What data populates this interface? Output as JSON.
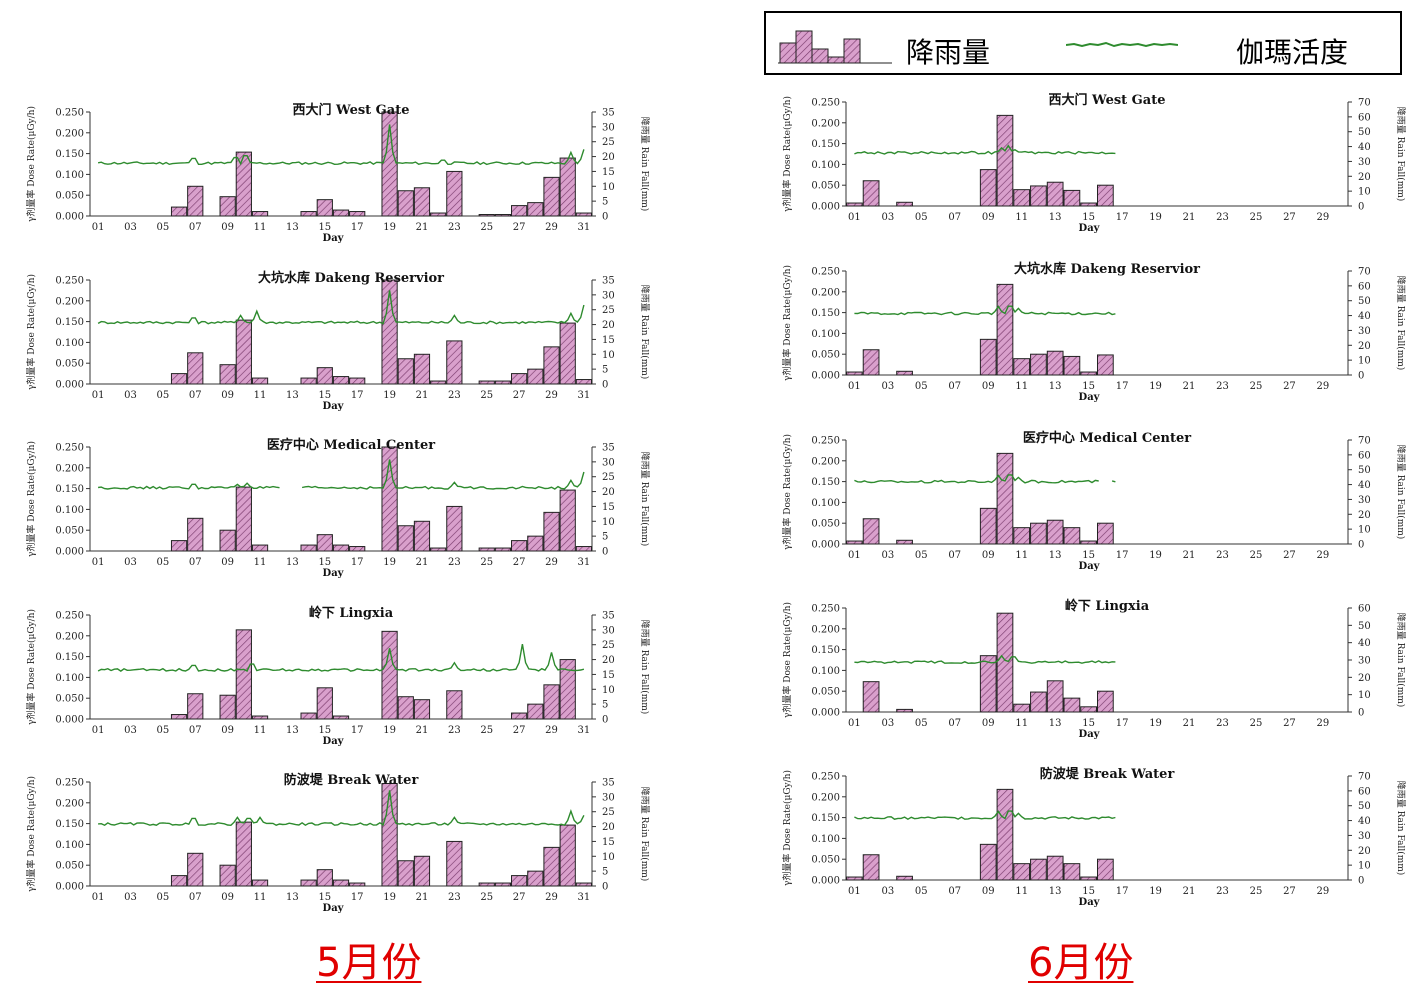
{
  "legend": {
    "rain_label": "降雨量",
    "gamma_label": "伽瑪活度"
  },
  "colors": {
    "bar_fill": "#d9a0cc",
    "bar_hatch": "#7a3a6c",
    "bar_stroke": "#222222",
    "line": "#2e8b2e",
    "month_label": "#e00000"
  },
  "months": [
    {
      "label": "5月份"
    },
    {
      "label": "6月份"
    }
  ],
  "chart_data": [
    {
      "type": "bar+line",
      "month": "5月份",
      "title": "西大门 West Gate",
      "xlabel": "Day",
      "ylabel": "γ剂量率 Dose Rate(μGy/h)",
      "y2label": "降雨量 Rain Fall(mm)",
      "ylim": [
        0,
        0.25
      ],
      "y2lim": [
        0,
        35
      ],
      "yticks": [
        "0.000",
        "0.050",
        "0.100",
        "0.150",
        "0.200",
        "0.250"
      ],
      "y2ticks": [
        "0",
        "5",
        "10",
        "15",
        "20",
        "25",
        "30",
        "35"
      ],
      "xticks": [
        "01",
        "03",
        "05",
        "07",
        "09",
        "11",
        "13",
        "15",
        "17",
        "19",
        "21",
        "23",
        "25",
        "27",
        "29",
        "31"
      ],
      "x_range": [
        1,
        31
      ],
      "rain": {
        "days": [
          6,
          7,
          9,
          10,
          11,
          14,
          15,
          16,
          17,
          19,
          20,
          21,
          22,
          23,
          25,
          26,
          27,
          28,
          29,
          30,
          31
        ],
        "values": [
          3,
          10,
          6.5,
          21.5,
          1.5,
          1.5,
          5.5,
          2,
          1.5,
          35,
          8.5,
          9.5,
          1,
          15,
          0.5,
          0.5,
          3.5,
          4.5,
          13,
          19.5,
          1
        ]
      },
      "gamma": {
        "base": 0.127,
        "start": 1,
        "end": 31,
        "spikes": [
          [
            6.9,
            0.145
          ],
          [
            9.5,
            0.148
          ],
          [
            10.1,
            0.155
          ],
          [
            19,
            0.22
          ],
          [
            22.3,
            0.138
          ],
          [
            30.2,
            0.153
          ],
          [
            31,
            0.16
          ]
        ]
      }
    },
    {
      "type": "bar+line",
      "month": "5月份",
      "title": "大坑水库 Dakeng Reservior",
      "xlabel": "Day",
      "ylabel": "γ剂量率 Dose Rate(μGy/h)",
      "y2label": "降雨量 Rain Fall(mm)",
      "ylim": [
        0,
        0.25
      ],
      "y2lim": [
        0,
        35
      ],
      "yticks": [
        "0.000",
        "0.050",
        "0.100",
        "0.150",
        "0.200",
        "0.250"
      ],
      "y2ticks": [
        "0",
        "5",
        "10",
        "15",
        "20",
        "25",
        "30",
        "35"
      ],
      "xticks": [
        "01",
        "03",
        "05",
        "07",
        "09",
        "11",
        "13",
        "15",
        "17",
        "19",
        "21",
        "23",
        "25",
        "27",
        "29",
        "31"
      ],
      "x_range": [
        1,
        31
      ],
      "rain": {
        "days": [
          6,
          7,
          9,
          10,
          11,
          14,
          15,
          16,
          17,
          19,
          20,
          21,
          22,
          23,
          25,
          26,
          27,
          28,
          29,
          30,
          31
        ],
        "values": [
          3.5,
          10.5,
          6.5,
          21.5,
          2,
          2,
          5.5,
          2.5,
          2,
          35,
          8.5,
          10,
          1,
          14.5,
          1,
          1,
          3.5,
          5,
          12.5,
          20.5,
          1.5
        ]
      },
      "gamma": {
        "base": 0.148,
        "start": 1,
        "end": 31,
        "spikes": [
          [
            6.9,
            0.165
          ],
          [
            9.8,
            0.165
          ],
          [
            10.8,
            0.175
          ],
          [
            19,
            0.225
          ],
          [
            23,
            0.165
          ],
          [
            30.2,
            0.17
          ],
          [
            31,
            0.19
          ]
        ]
      }
    },
    {
      "type": "bar+line",
      "month": "5月份",
      "title": "医疗中心 Medical Center",
      "xlabel": "Day",
      "ylabel": "γ剂量率 Dose Rate(μGy/h)",
      "y2label": "降雨量 Rain Fall(mm)",
      "ylim": [
        0,
        0.25
      ],
      "y2lim": [
        0,
        35
      ],
      "yticks": [
        "0.000",
        "0.050",
        "0.100",
        "0.150",
        "0.200",
        "0.250"
      ],
      "y2ticks": [
        "0",
        "5",
        "10",
        "15",
        "20",
        "25",
        "30",
        "35"
      ],
      "xticks": [
        "01",
        "03",
        "05",
        "07",
        "09",
        "11",
        "13",
        "15",
        "17",
        "19",
        "21",
        "23",
        "25",
        "27",
        "29",
        "31"
      ],
      "x_range": [
        1,
        31
      ],
      "rain": {
        "days": [
          6,
          7,
          9,
          10,
          11,
          14,
          15,
          16,
          17,
          19,
          20,
          21,
          22,
          23,
          25,
          26,
          27,
          28,
          29,
          30,
          31
        ],
        "values": [
          3.5,
          11,
          7,
          21.5,
          2,
          2,
          5.5,
          2,
          1.5,
          35,
          8.5,
          10,
          1,
          15,
          1,
          1,
          3.5,
          5,
          13,
          20.5,
          1.5
        ]
      },
      "gamma": {
        "base": 0.152,
        "start": 1,
        "end": 31,
        "gap": [
          12.2,
          13.6
        ],
        "spikes": [
          [
            6.9,
            0.165
          ],
          [
            9.6,
            0.16
          ],
          [
            10.2,
            0.163
          ],
          [
            19,
            0.22
          ],
          [
            23,
            0.165
          ],
          [
            30.2,
            0.17
          ],
          [
            31,
            0.19
          ]
        ]
      }
    },
    {
      "type": "bar+line",
      "month": "5月份",
      "title": "岭下 Lingxia",
      "xlabel": "Day",
      "ylabel": "γ剂量率 Dose Rate(μGy/h)",
      "y2label": "降雨量 Rain Fall(mm)",
      "ylim": [
        0,
        0.25
      ],
      "y2lim": [
        0,
        35
      ],
      "yticks": [
        "0.000",
        "0.050",
        "0.100",
        "0.150",
        "0.200",
        "0.250"
      ],
      "y2ticks": [
        "0",
        "5",
        "10",
        "15",
        "20",
        "25",
        "30",
        "35"
      ],
      "xticks": [
        "01",
        "03",
        "05",
        "07",
        "09",
        "11",
        "13",
        "15",
        "17",
        "19",
        "21",
        "23",
        "25",
        "27",
        "29",
        "31"
      ],
      "x_range": [
        1,
        31
      ],
      "rain": {
        "days": [
          6,
          7,
          9,
          10,
          11,
          14,
          15,
          16,
          19,
          20,
          21,
          23,
          27,
          28,
          29,
          30
        ],
        "values": [
          1.5,
          8.5,
          8,
          30,
          1,
          2,
          10.5,
          1,
          29.5,
          7.5,
          6.5,
          9.5,
          2,
          5,
          11.5,
          20
        ]
      },
      "gamma": {
        "base": 0.118,
        "start": 1,
        "end": 31,
        "spikes": [
          [
            6.9,
            0.135
          ],
          [
            10.5,
            0.14
          ],
          [
            19,
            0.17
          ],
          [
            23,
            0.135
          ],
          [
            27.2,
            0.18
          ],
          [
            29,
            0.16
          ]
        ]
      }
    },
    {
      "type": "bar+line",
      "month": "5月份",
      "title": "防波堤 Break Water",
      "xlabel": "Day",
      "ylabel": "γ剂量率 Dose Rate(μGy/h)",
      "y2label": "降雨量 Rain Fall(mm)",
      "ylim": [
        0,
        0.25
      ],
      "y2lim": [
        0,
        35
      ],
      "yticks": [
        "0.000",
        "0.050",
        "0.100",
        "0.150",
        "0.200",
        "0.250"
      ],
      "y2ticks": [
        "0",
        "5",
        "10",
        "15",
        "20",
        "25",
        "30",
        "35"
      ],
      "xticks": [
        "01",
        "03",
        "05",
        "07",
        "09",
        "11",
        "13",
        "15",
        "17",
        "19",
        "21",
        "23",
        "25",
        "27",
        "29",
        "31"
      ],
      "x_range": [
        1,
        31
      ],
      "rain": {
        "days": [
          6,
          7,
          9,
          10,
          11,
          14,
          15,
          16,
          17,
          19,
          20,
          21,
          23,
          25,
          26,
          27,
          28,
          29,
          30,
          31
        ],
        "values": [
          3.5,
          11,
          7,
          21.5,
          2,
          2,
          5.5,
          2,
          1,
          34.5,
          8.5,
          10,
          15,
          1,
          1,
          3.5,
          5,
          13,
          20.5,
          1
        ]
      },
      "gamma": {
        "base": 0.149,
        "start": 1,
        "end": 31,
        "spikes": [
          [
            6.9,
            0.17
          ],
          [
            9.6,
            0.165
          ],
          [
            10.3,
            0.17
          ],
          [
            11,
            0.165
          ],
          [
            19,
            0.23
          ],
          [
            23,
            0.165
          ],
          [
            30.2,
            0.18
          ],
          [
            31,
            0.17
          ]
        ]
      }
    },
    {
      "type": "bar+line",
      "month": "6月份",
      "title": "西大门 West Gate",
      "xlabel": "Day",
      "ylabel": "γ剂量率 Dose Rate(μGy/h)",
      "y2label": "降雨量 Rain Fall(mm)",
      "ylim": [
        0,
        0.25
      ],
      "y2lim": [
        0,
        70
      ],
      "yticks": [
        "0.000",
        "0.050",
        "0.100",
        "0.150",
        "0.200",
        "0.250"
      ],
      "y2ticks": [
        "0",
        "10",
        "20",
        "30",
        "40",
        "50",
        "60",
        "70"
      ],
      "xticks": [
        "01",
        "03",
        "05",
        "07",
        "09",
        "11",
        "13",
        "15",
        "17",
        "19",
        "21",
        "23",
        "25",
        "27",
        "29"
      ],
      "x_range": [
        1,
        30
      ],
      "rain": {
        "days": [
          1,
          2,
          4,
          9,
          10,
          11,
          12,
          13,
          14,
          15,
          16
        ],
        "values": [
          2,
          17,
          2.5,
          24.5,
          61,
          11,
          13.5,
          16,
          10.5,
          2,
          14
        ]
      },
      "gamma": {
        "base": 0.128,
        "start": 1,
        "end": 16.6,
        "spikes": [
          [
            9.8,
            0.14
          ],
          [
            10.2,
            0.145
          ],
          [
            10.6,
            0.135
          ]
        ]
      }
    },
    {
      "type": "bar+line",
      "month": "6月份",
      "title": "大坑水库 Dakeng Reservior",
      "xlabel": "Day",
      "ylabel": "γ剂量率 Dose Rate(μGy/h)",
      "y2label": "降雨量 Rain Fall(mm)",
      "ylim": [
        0,
        0.25
      ],
      "y2lim": [
        0,
        70
      ],
      "yticks": [
        "0.000",
        "0.050",
        "0.100",
        "0.150",
        "0.200",
        "0.250"
      ],
      "y2ticks": [
        "0",
        "10",
        "20",
        "30",
        "40",
        "50",
        "60",
        "70"
      ],
      "xticks": [
        "01",
        "03",
        "05",
        "07",
        "09",
        "11",
        "13",
        "15",
        "17",
        "19",
        "21",
        "23",
        "25",
        "27",
        "29"
      ],
      "x_range": [
        1,
        30
      ],
      "rain": {
        "days": [
          1,
          2,
          4,
          9,
          10,
          11,
          12,
          13,
          14,
          15,
          16
        ],
        "values": [
          2,
          17,
          2.5,
          24,
          61,
          11,
          14,
          16,
          12.5,
          2,
          13.5
        ]
      },
      "gamma": {
        "base": 0.148,
        "start": 1,
        "end": 16.6,
        "spikes": [
          [
            9.6,
            0.165
          ],
          [
            10.3,
            0.175
          ],
          [
            10.8,
            0.16
          ]
        ]
      }
    },
    {
      "type": "bar+line",
      "month": "6月份",
      "title": "医疗中心 Medical Center",
      "xlabel": "Day",
      "ylabel": "γ剂量率 Dose Rate(μGy/h)",
      "y2label": "降雨量 Rain Fall(mm)",
      "ylim": [
        0,
        0.25
      ],
      "y2lim": [
        0,
        70
      ],
      "yticks": [
        "0.000",
        "0.050",
        "0.100",
        "0.150",
        "0.200",
        "0.250"
      ],
      "y2ticks": [
        "0",
        "10",
        "20",
        "30",
        "40",
        "50",
        "60",
        "70"
      ],
      "xticks": [
        "01",
        "03",
        "05",
        "07",
        "09",
        "11",
        "13",
        "15",
        "17",
        "19",
        "21",
        "23",
        "25",
        "27",
        "29"
      ],
      "x_range": [
        1,
        30
      ],
      "rain": {
        "days": [
          1,
          2,
          4,
          9,
          10,
          11,
          12,
          13,
          14,
          15,
          16
        ],
        "values": [
          2,
          17,
          2.5,
          24,
          61,
          11,
          14,
          16,
          11,
          2,
          14
        ]
      },
      "gamma": {
        "base": 0.15,
        "start": 1,
        "end": 16.6,
        "gap": [
          15.6,
          16.3
        ],
        "spikes": [
          [
            9.6,
            0.165
          ],
          [
            10.3,
            0.175
          ],
          [
            10.8,
            0.16
          ]
        ]
      }
    },
    {
      "type": "bar+line",
      "month": "6月份",
      "title": "岭下 Lingxia",
      "xlabel": "Day",
      "ylabel": "γ剂量率 Dose Rate(μGy/h)",
      "y2label": "降雨量 Rain Fall(mm)",
      "ylim": [
        0,
        0.25
      ],
      "y2lim": [
        0,
        60
      ],
      "yticks": [
        "0.000",
        "0.050",
        "0.100",
        "0.150",
        "0.200",
        "0.250"
      ],
      "y2ticks": [
        "0",
        "10",
        "20",
        "30",
        "40",
        "50",
        "60"
      ],
      "xticks": [
        "01",
        "03",
        "05",
        "07",
        "09",
        "11",
        "13",
        "15",
        "17",
        "19",
        "21",
        "23",
        "25",
        "27",
        "29"
      ],
      "x_range": [
        1,
        30
      ],
      "rain": {
        "days": [
          2,
          4,
          9,
          10,
          11,
          12,
          13,
          14,
          15,
          16
        ],
        "values": [
          17.5,
          1.5,
          32.5,
          57,
          4.5,
          11.5,
          18,
          8,
          3,
          12
        ]
      },
      "gamma": {
        "base": 0.12,
        "start": 1,
        "end": 16.6,
        "spikes": [
          [
            9.8,
            0.135
          ],
          [
            10.5,
            0.14
          ]
        ]
      }
    },
    {
      "type": "bar+line",
      "month": "6月份",
      "title": "防波堤 Break Water",
      "xlabel": "Day",
      "ylabel": "γ剂量率 Dose Rate(μGy/h)",
      "y2label": "降雨量 Rain Fall(mm)",
      "ylim": [
        0,
        0.25
      ],
      "y2lim": [
        0,
        70
      ],
      "yticks": [
        "0.000",
        "0.050",
        "0.100",
        "0.150",
        "0.200",
        "0.250"
      ],
      "y2ticks": [
        "0",
        "10",
        "20",
        "30",
        "40",
        "50",
        "60",
        "70"
      ],
      "xticks": [
        "01",
        "03",
        "05",
        "07",
        "09",
        "11",
        "13",
        "15",
        "17",
        "19",
        "21",
        "23",
        "25",
        "27",
        "29"
      ],
      "x_range": [
        1,
        30
      ],
      "rain": {
        "days": [
          1,
          2,
          4,
          9,
          10,
          11,
          12,
          13,
          14,
          15,
          16
        ],
        "values": [
          2,
          17,
          2.5,
          24,
          61,
          11,
          14,
          16,
          11,
          2,
          14
        ]
      },
      "gamma": {
        "base": 0.149,
        "start": 1,
        "end": 16.6,
        "spikes": [
          [
            9.6,
            0.165
          ],
          [
            10.3,
            0.175
          ],
          [
            10.8,
            0.16
          ]
        ]
      }
    }
  ]
}
